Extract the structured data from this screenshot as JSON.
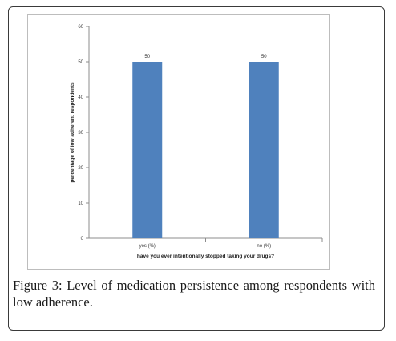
{
  "chart_data": {
    "type": "bar",
    "categories": [
      "yes (%)",
      "no (%)"
    ],
    "values": [
      50,
      50
    ],
    "data_labels": [
      "50",
      "50"
    ],
    "xlabel": "have you ever intentionally stopped taking your drugs?",
    "ylabel": "percentage of low adherent respondents",
    "ylim": [
      0,
      60
    ],
    "yticks": [
      0,
      10,
      20,
      30,
      40,
      50,
      60
    ],
    "bar_color": "#4f81bd",
    "grid": false
  },
  "caption": {
    "label": "Figure 3:",
    "text": "Level of medication persistence among respondents with low adherence."
  }
}
